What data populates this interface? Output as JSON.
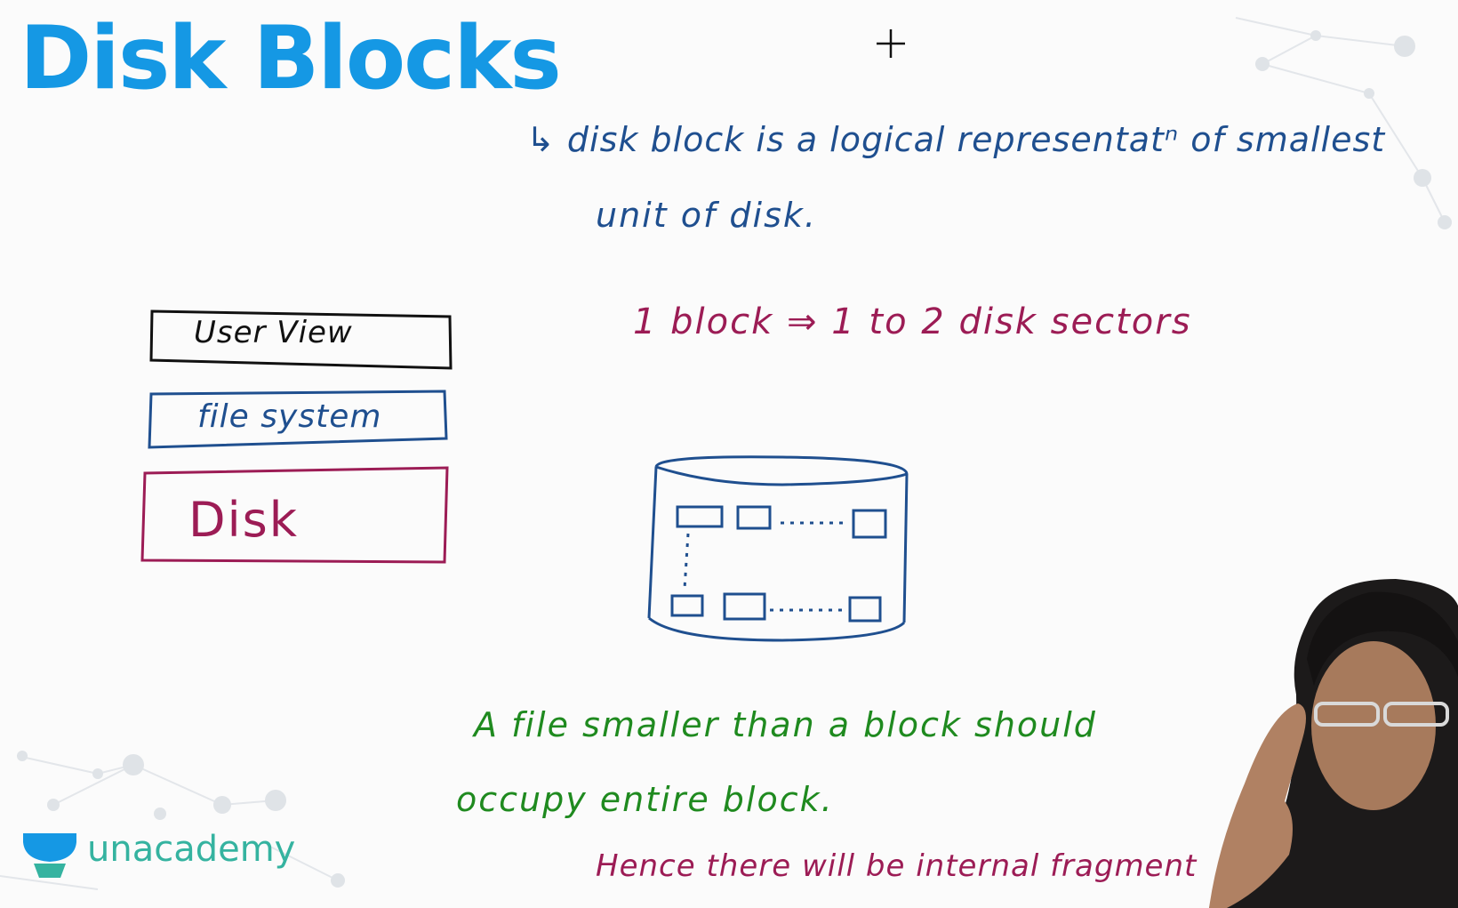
{
  "slide": {
    "title": "Disk Blocks",
    "definition": {
      "line1": "↳ disk block is a logical representatⁿ of smallest",
      "line2": "unit of disk."
    },
    "block_relation": "1 block ⇒ 1 to 2 disk sectors",
    "layers": [
      {
        "label": "User View",
        "color": "#111111"
      },
      {
        "label": "file system",
        "color": "#1f4f8f"
      },
      {
        "label": "Disk",
        "color": "#9c1c55"
      }
    ],
    "note": {
      "line1": "A file smaller than a block should",
      "line2": "occupy entire block.",
      "line3": "Hence there will be internal fragment"
    }
  },
  "branding": {
    "logo_text": "unacademy",
    "logo_icon": "unacademy-cap-icon",
    "logo_color": "#35b3a0"
  },
  "colors": {
    "title": "#1598e4",
    "blue_ink": "#1f4f8f",
    "maroon_ink": "#9c1c55",
    "green_ink": "#1f8a1f",
    "black_ink": "#111111"
  }
}
